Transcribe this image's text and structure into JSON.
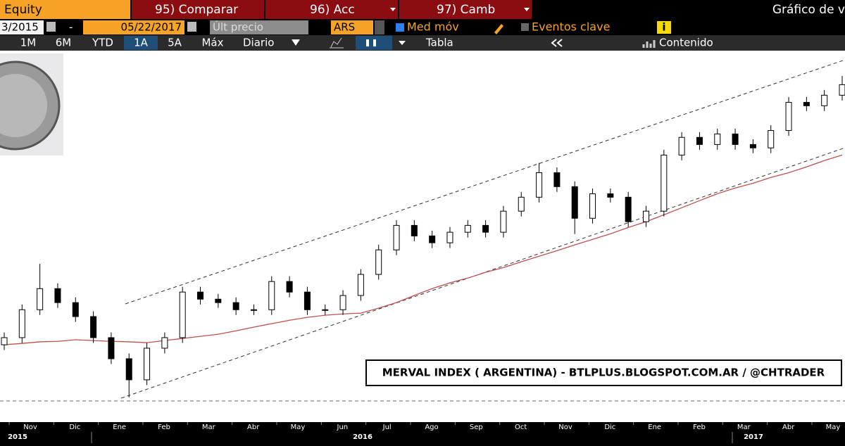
{
  "toolbar": {
    "security": "Equity",
    "buttons": [
      "95) Comparar",
      "96) Acc",
      "97) Camb"
    ],
    "right_title": "Gráfico de v",
    "start_date": "3/2015",
    "dash": "-",
    "end_date": "05/22/2017",
    "field": "Últ precio",
    "currency": "ARS",
    "moving_avg": "Med móv",
    "events": "Eventos clave",
    "info": "i",
    "periods": [
      "1M",
      "6M",
      "YTD",
      "1A",
      "5A",
      "Máx"
    ],
    "active_period": "1A",
    "frequency": "Diario",
    "table": "Tabla",
    "content": "Contenido"
  },
  "chart_data": {
    "type": "candlestick",
    "title": "MERVAL INDEX ( ARGENTINA) - BTLPLUS.BLOGSPOT.COM.AR / @CHTRADER",
    "months": [
      "Nov",
      "Dic",
      "Ene",
      "Feb",
      "Mar",
      "Abr",
      "May",
      "Jun",
      "Jul",
      "Ago",
      "Sep",
      "Oct",
      "Nov",
      "Dic",
      "Ene",
      "Feb",
      "Mar",
      "Abr",
      "May"
    ],
    "years": [
      "2015",
      "2016",
      "2017"
    ],
    "open": [
      11500,
      11770,
      12830,
      13630,
      13100,
      12570,
      11770,
      10970,
      10170,
      11370,
      11770,
      13500,
      13230,
      13100,
      12830,
      12830,
      13900,
      13500,
      12830,
      12830,
      13370,
      14170,
      15100,
      16030,
      15630,
      15370,
      15770,
      16030,
      15770,
      16570,
      17100,
      18030,
      17500,
      16300,
      17230,
      17100,
      16170,
      16570,
      18700,
      19370,
      19100,
      19500,
      19100,
      18970,
      19630,
      20700,
      20570,
      20970
    ],
    "high": [
      11970,
      13030,
      14570,
      13830,
      13300,
      12770,
      11970,
      11170,
      11570,
      11970,
      13700,
      13700,
      13430,
      13300,
      13030,
      14100,
      14100,
      13700,
      13030,
      13570,
      14370,
      15300,
      16230,
      16230,
      15830,
      15970,
      16230,
      16230,
      16770,
      17300,
      18400,
      18230,
      17700,
      17430,
      17430,
      17300,
      16770,
      18900,
      19570,
      19570,
      19700,
      19700,
      19300,
      19830,
      20900,
      20900,
      21170,
      21700
    ],
    "low": [
      11300,
      11570,
      12630,
      12900,
      12370,
      11570,
      10770,
      9500,
      9970,
      11170,
      11570,
      13030,
      12900,
      12630,
      12630,
      12630,
      13300,
      12630,
      12630,
      12630,
      13170,
      13970,
      14900,
      15430,
      15170,
      15170,
      15570,
      15570,
      15570,
      16370,
      16900,
      17300,
      15700,
      16100,
      16900,
      15970,
      15970,
      16370,
      18500,
      18900,
      18900,
      18900,
      18770,
      18770,
      19430,
      20370,
      20370,
      20770
    ],
    "close": [
      11770,
      12830,
      13630,
      13100,
      12570,
      11770,
      10970,
      10170,
      11370,
      11770,
      13500,
      13230,
      13100,
      12830,
      12830,
      13900,
      13500,
      12830,
      12830,
      13370,
      14170,
      15100,
      16030,
      15630,
      15370,
      15770,
      16030,
      15770,
      16570,
      17100,
      18030,
      17500,
      16300,
      17230,
      17100,
      16170,
      16570,
      18700,
      19370,
      19100,
      19500,
      19100,
      18970,
      19630,
      20700,
      20570,
      20970,
      21370
    ],
    "moving_average": [
      11500,
      11550,
      11610,
      11630,
      11690,
      11660,
      11630,
      11610,
      11580,
      11660,
      11740,
      11820,
      11900,
      12030,
      12170,
      12300,
      12430,
      12540,
      12620,
      12670,
      12700,
      12890,
      13100,
      13370,
      13630,
      13850,
      14030,
      14250,
      14430,
      14650,
      14860,
      15070,
      15290,
      15500,
      15710,
      15950,
      16170,
      16430,
      16700,
      16970,
      17230,
      17450,
      17630,
      17850,
      18030,
      18250,
      18490,
      18700
    ],
    "candle_color": "#000000",
    "ma_color": "#c0504d"
  }
}
